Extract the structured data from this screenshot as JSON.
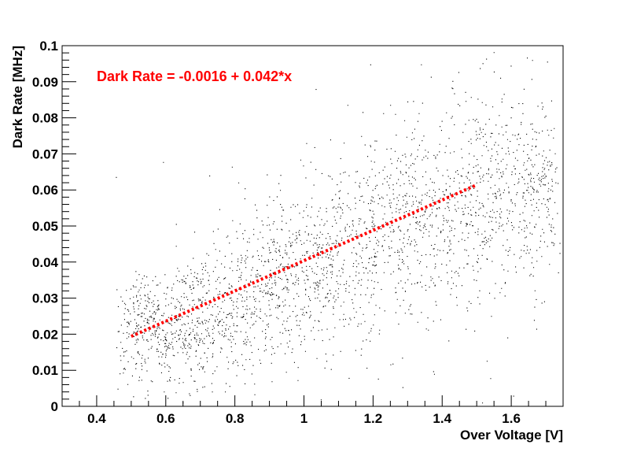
{
  "chart_data": {
    "type": "scatter",
    "title": "",
    "xlabel": "Over Voltage [V]",
    "ylabel": "Dark Rate [MHz]",
    "xlim": [
      0.3,
      1.75
    ],
    "ylim": [
      0,
      0.1
    ],
    "x_ticks": [
      "0.4",
      "0.6",
      "0.8",
      "1",
      "1.2",
      "1.4",
      "1.6"
    ],
    "y_ticks": [
      "0",
      "0.01",
      "0.02",
      "0.03",
      "0.04",
      "0.05",
      "0.06",
      "0.07",
      "0.08",
      "0.09",
      "0.1"
    ],
    "grid": false,
    "legend": "none",
    "marker_color": "#000000",
    "scatter_density": {
      "description_x": [
        0.5,
        0.6,
        0.7,
        0.8,
        0.9,
        1.0,
        1.1,
        1.2,
        1.3,
        1.4,
        1.5,
        1.6,
        1.7
      ],
      "core_y_low": [
        0.01,
        0.01,
        0.012,
        0.015,
        0.018,
        0.022,
        0.026,
        0.03,
        0.033,
        0.036,
        0.04,
        0.042,
        0.045
      ],
      "core_y_high": [
        0.03,
        0.032,
        0.037,
        0.042,
        0.047,
        0.052,
        0.058,
        0.064,
        0.07,
        0.074,
        0.078,
        0.078,
        0.075
      ]
    },
    "fit": {
      "label": "Dark Rate = -0.0016 + 0.042*x",
      "intercept": -0.0016,
      "slope": 0.042,
      "x_range": [
        0.5,
        1.5
      ],
      "color": "#ff0000",
      "style": "dotted"
    }
  }
}
